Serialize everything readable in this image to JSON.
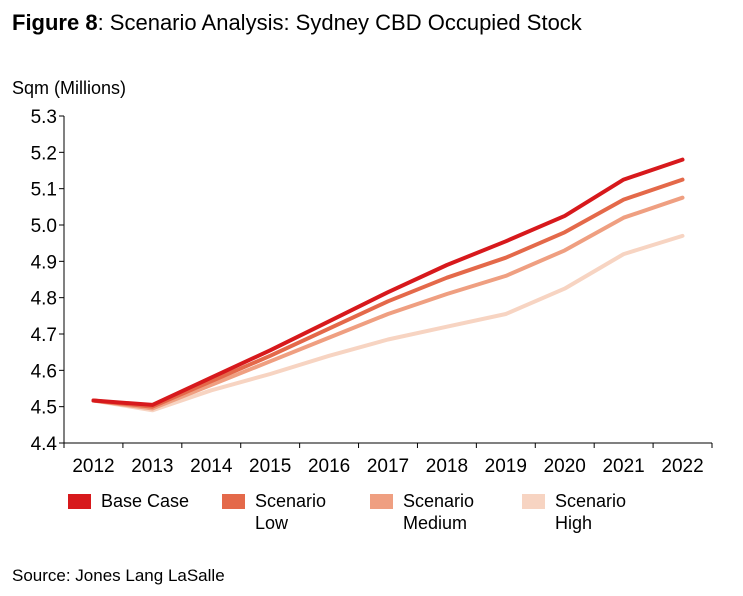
{
  "title_bold": "Figure 8",
  "title_rest": ": Scenario Analysis: Sydney CBD Occupied Stock",
  "source": "Source: Jones Lang LaSalle",
  "chart_data": {
    "type": "line",
    "title": "Figure 8: Scenario Analysis: Sydney CBD Occupied Stock",
    "ylabel": "Sqm (Millions)",
    "xlabel": "",
    "ylim": [
      4.4,
      5.3
    ],
    "yticks": [
      "4.4",
      "4.5",
      "4.6",
      "4.7",
      "4.8",
      "4.9",
      "5.0",
      "5.1",
      "5.2",
      "5.3"
    ],
    "categories": [
      "2012",
      "2013",
      "2014",
      "2015",
      "2016",
      "2017",
      "2018",
      "2019",
      "2020",
      "2021",
      "2022"
    ],
    "grid": false,
    "legend_position": "bottom",
    "series": [
      {
        "name": "Base Case",
        "legend_lines": [
          "Base Case"
        ],
        "color": "#d7191c",
        "values": [
          4.517,
          4.505,
          4.58,
          4.655,
          4.735,
          4.815,
          4.89,
          4.955,
          5.025,
          5.125,
          5.18
        ]
      },
      {
        "name": "Scenario Low",
        "legend_lines": [
          "Scenario",
          "Low"
        ],
        "color": "#e4694a",
        "values": [
          4.517,
          4.5,
          4.57,
          4.64,
          4.715,
          4.79,
          4.855,
          4.91,
          4.98,
          5.07,
          5.125
        ]
      },
      {
        "name": "Scenario Medium",
        "legend_lines": [
          "Scenario",
          "Medium"
        ],
        "color": "#ef9f81",
        "values": [
          4.517,
          4.495,
          4.56,
          4.625,
          4.69,
          4.755,
          4.81,
          4.86,
          4.93,
          5.02,
          5.075
        ]
      },
      {
        "name": "Scenario High",
        "legend_lines": [
          "Scenario",
          "High"
        ],
        "color": "#f7d4c2",
        "values": [
          4.517,
          4.49,
          4.545,
          4.59,
          4.64,
          4.685,
          4.72,
          4.755,
          4.825,
          4.92,
          4.97
        ]
      }
    ]
  }
}
